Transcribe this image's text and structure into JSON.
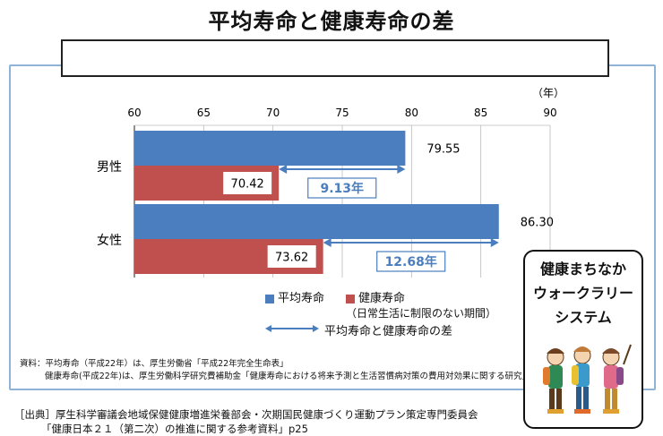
{
  "title": "平均寿命と健康寿命の差",
  "unit": "（年）",
  "chart_data": {
    "type": "bar",
    "orientation": "horizontal",
    "categories": [
      "男性",
      "女性"
    ],
    "series": [
      {
        "name": "平均寿命",
        "values": [
          79.55,
          86.3
        ],
        "labels": [
          "79.55",
          "86.30"
        ],
        "color": "#4a7ebf"
      },
      {
        "name": "健康寿命",
        "values": [
          70.42,
          73.62
        ],
        "labels": [
          "70.42",
          "73.62"
        ],
        "color": "#c0504d"
      }
    ],
    "xlim": [
      60,
      90
    ],
    "xticks": [
      "60",
      "65",
      "70",
      "75",
      "80",
      "85",
      "90"
    ],
    "differences": [
      "9.13年",
      "12.68年"
    ],
    "grid": true
  },
  "legend": {
    "avg": "平均寿命",
    "healthy": "健康寿命",
    "healthy_note": "（日常生活に制限のない期間）",
    "diff": "平均寿命と健康寿命の差"
  },
  "notes": {
    "line1": "資料：平均寿命（平成22年）は、厚生労働省「平成22年完全生命表」",
    "line2": "健康寿命(平成22年)は、厚生労働科学研究費補助金「健康寿命における将来予測と生活習慣病対策の費用対効果に関する研究」"
  },
  "source": {
    "line1": "［出典］厚生科学審議会地域保健健康増進栄養部会・次期国民健康づくり運動プラン策定専門委員会",
    "line2": "「健康日本２１（第二次）の推進に関する参考資料」p25"
  },
  "promo": {
    "line1": "健康まちなか",
    "line2": "ウォークラリー",
    "line3": "システム"
  },
  "colors": {
    "avg": "#4a7ebf",
    "healthy": "#c0504d",
    "diff": "#4a7ebf"
  }
}
